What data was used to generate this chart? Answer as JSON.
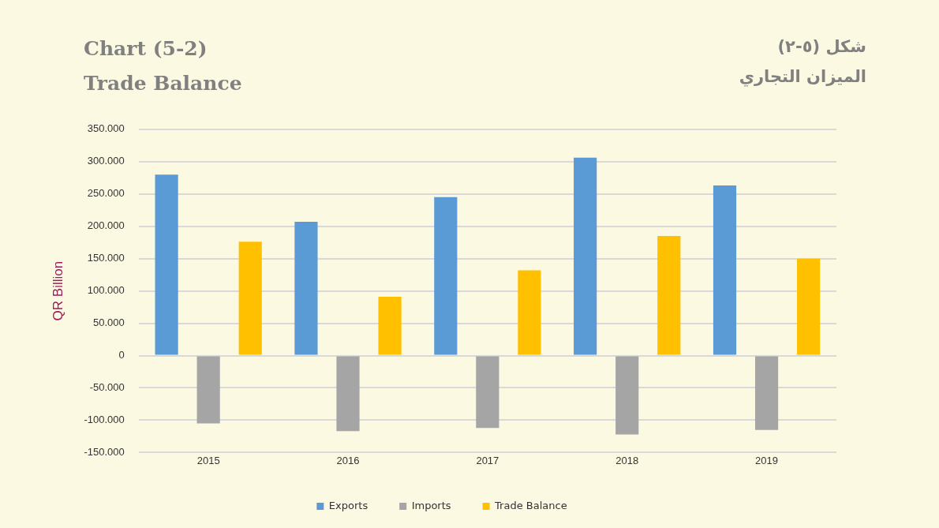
{
  "chart_data": {
    "type": "bar",
    "title": "Chart (5-2)\nTrade Balance",
    "subtitle": "شكل (٥-٢)\nالميزان التجاري",
    "ylabel": "QR Billion",
    "categories": [
      "2015",
      "2016",
      "2017",
      "2018",
      "2019"
    ],
    "series": [
      {
        "name": "Exports",
        "color": "#5b9bd5",
        "values": [
          280000,
          207000,
          245000,
          306000,
          263000
        ]
      },
      {
        "name": "Imports",
        "color": "#a5a5a5",
        "values": [
          -105000,
          -117000,
          -112000,
          -122000,
          -115000
        ]
      },
      {
        "name": "Trade Balance",
        "color": "#ffc000",
        "values": [
          176000,
          91000,
          132000,
          185000,
          150000
        ]
      }
    ],
    "ylim": [
      -150000,
      350000
    ],
    "yticks": [
      {
        "value": -150000,
        "label": "-150.000"
      },
      {
        "value": -100000,
        "label": "-100.000"
      },
      {
        "value": -50000,
        "label": "-50.000"
      },
      0,
      {
        "value": 50000,
        "label": "50.000"
      },
      {
        "value": 100000,
        "label": "100.000"
      },
      {
        "value": 150000,
        "label": "150.000"
      },
      {
        "value": 200000,
        "label": "200.000"
      },
      {
        "value": 250000,
        "label": "250.000"
      },
      {
        "value": 300000,
        "label": "300.000"
      },
      {
        "value": 350000,
        "label": "350.000"
      }
    ],
    "grid": "y",
    "legend": "bottom"
  }
}
